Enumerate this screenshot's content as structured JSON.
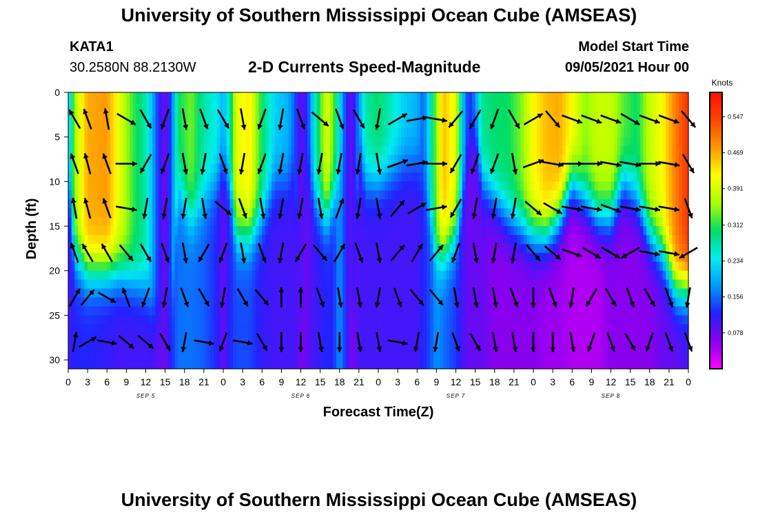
{
  "header": {
    "title": "University of Southern Mississippi Ocean Cube (AMSEAS)",
    "footer_title": "University of Southern Mississippi Ocean Cube (AMSEAS)",
    "station_id": "KATA1",
    "station_coords": "30.2580N  88.2130W",
    "subtitle": "2-D Currents Speed-Magnitude",
    "model_start_label": "Model Start Time",
    "model_start_value": "09/05/2021 Hour 00"
  },
  "chart_data": {
    "type": "heatmap",
    "title": "2-D Currents Speed-Magnitude",
    "xlabel": "Forecast Time(Z)",
    "ylabel": "Depth (ft)",
    "x_tick_labels": [
      "0",
      "3",
      "6",
      "9",
      "12",
      "15",
      "18",
      "21",
      "0",
      "3",
      "6",
      "9",
      "12",
      "15",
      "18",
      "21",
      "0",
      "3",
      "6",
      "9",
      "12",
      "15",
      "18",
      "21",
      "0",
      "3",
      "6",
      "9",
      "12",
      "15",
      "18",
      "21",
      "0"
    ],
    "x_range_hours": [
      0,
      96
    ],
    "day_labels": [
      {
        "label": "SEP 5",
        "hour": 12
      },
      {
        "label": "SEP 6",
        "hour": 36
      },
      {
        "label": "SEP 7",
        "hour": 60
      },
      {
        "label": "SEP 8",
        "hour": 84
      }
    ],
    "y_ticks": [
      0,
      5,
      10,
      15,
      20,
      25,
      30
    ],
    "ylim_ft": [
      0,
      31
    ],
    "y_inverted": true,
    "colorbar": {
      "unit": "Knots",
      "tick_labels": [
        "0.547",
        "0.469",
        "0.391",
        "0.312",
        "0.234",
        "0.156",
        "0.078"
      ],
      "range": [
        0,
        0.6
      ],
      "colors": [
        "#ff00ff",
        "#8800ee",
        "#2222ff",
        "#0099ff",
        "#00eeee",
        "#00dd66",
        "#aaff00",
        "#ffff00",
        "#ff9900",
        "#ff4400",
        "#ff1100"
      ]
    },
    "hour_profiles": [
      {
        "h": 0,
        "s": 0.19,
        "d": 10,
        "h2": 0.1
      },
      {
        "h": 1,
        "s": 0.36,
        "d": 18,
        "h2": 0.12
      },
      {
        "h": 3,
        "s": 0.47,
        "d": 20,
        "h2": 0.12
      },
      {
        "h": 6,
        "s": 0.48,
        "d": 20,
        "h2": 0.11
      },
      {
        "h": 8,
        "s": 0.4,
        "d": 20,
        "h2": 0.1
      },
      {
        "h": 10,
        "s": 0.32,
        "d": 21,
        "h2": 0.1
      },
      {
        "h": 12,
        "s": 0.27,
        "d": 22,
        "h2": 0.1
      },
      {
        "h": 13,
        "s": 0.2,
        "d": 24,
        "h2": 0.1
      },
      {
        "h": 14,
        "s": 0.12,
        "d": 25,
        "h2": 0.08
      },
      {
        "h": 15,
        "s": 0.07,
        "d": 31,
        "h2": 0.07
      },
      {
        "h": 16,
        "s": 0.15,
        "d": 26,
        "h2": 0.12
      },
      {
        "h": 17,
        "s": 0.3,
        "d": 10,
        "h2": 0.16
      },
      {
        "h": 19,
        "s": 0.34,
        "d": 14,
        "h2": 0.16
      },
      {
        "h": 21,
        "s": 0.27,
        "d": 12,
        "h2": 0.15
      },
      {
        "h": 23,
        "s": 0.24,
        "d": 10,
        "h2": 0.12
      },
      {
        "h": 24,
        "s": 0.2,
        "d": 8,
        "h2": 0.08
      },
      {
        "h": 25,
        "s": 0.27,
        "d": 10,
        "h2": 0.12
      },
      {
        "h": 26,
        "s": 0.4,
        "d": 16,
        "h2": 0.14
      },
      {
        "h": 28,
        "s": 0.43,
        "d": 16,
        "h2": 0.14
      },
      {
        "h": 30,
        "s": 0.3,
        "d": 14,
        "h2": 0.11
      },
      {
        "h": 32,
        "s": 0.22,
        "d": 10,
        "h2": 0.1
      },
      {
        "h": 34,
        "s": 0.2,
        "d": 10,
        "h2": 0.1
      },
      {
        "h": 35,
        "s": 0.15,
        "d": 9,
        "h2": 0.1
      },
      {
        "h": 36,
        "s": 0.08,
        "d": 31,
        "h2": 0.07
      },
      {
        "h": 37,
        "s": 0.12,
        "d": 8,
        "h2": 0.08
      },
      {
        "h": 38,
        "s": 0.24,
        "d": 12,
        "h2": 0.1
      },
      {
        "h": 40,
        "s": 0.4,
        "d": 14,
        "h2": 0.12
      },
      {
        "h": 41,
        "s": 0.34,
        "d": 12,
        "h2": 0.12
      },
      {
        "h": 42,
        "s": 0.24,
        "d": 10,
        "h2": 0.18
      },
      {
        "h": 43,
        "s": 0.12,
        "d": 6,
        "h2": 0.12
      },
      {
        "h": 44,
        "s": 0.08,
        "d": 31,
        "h2": 0.06
      },
      {
        "h": 45,
        "s": 0.18,
        "d": 6,
        "h2": 0.1
      },
      {
        "h": 46,
        "s": 0.27,
        "d": 10,
        "h2": 0.1
      },
      {
        "h": 48,
        "s": 0.3,
        "d": 10,
        "h2": 0.1
      },
      {
        "h": 50,
        "s": 0.26,
        "d": 9,
        "h2": 0.1
      },
      {
        "h": 52,
        "s": 0.22,
        "d": 8,
        "h2": 0.1
      },
      {
        "h": 54,
        "s": 0.2,
        "d": 8,
        "h2": 0.1
      },
      {
        "h": 55,
        "s": 0.15,
        "d": 10,
        "h2": 0.12
      },
      {
        "h": 56,
        "s": 0.25,
        "d": 14,
        "h2": 0.14
      },
      {
        "h": 57,
        "s": 0.35,
        "d": 18,
        "h2": 0.18
      },
      {
        "h": 58,
        "s": 0.46,
        "d": 18,
        "h2": 0.16
      },
      {
        "h": 60,
        "s": 0.4,
        "d": 16,
        "h2": 0.13
      },
      {
        "h": 61,
        "s": 0.22,
        "d": 12,
        "h2": 0.1
      },
      {
        "h": 62,
        "s": 0.12,
        "d": 6,
        "h2": 0.08
      },
      {
        "h": 63,
        "s": 0.18,
        "d": 4,
        "h2": 0.08
      },
      {
        "h": 64,
        "s": 0.28,
        "d": 10,
        "h2": 0.08
      },
      {
        "h": 66,
        "s": 0.3,
        "d": 12,
        "h2": 0.06
      },
      {
        "h": 68,
        "s": 0.3,
        "d": 14,
        "h2": 0.06
      },
      {
        "h": 70,
        "s": 0.34,
        "d": 15,
        "h2": 0.06
      },
      {
        "h": 72,
        "s": 0.42,
        "d": 16,
        "h2": 0.06
      },
      {
        "h": 74,
        "s": 0.46,
        "d": 16,
        "h2": 0.05
      },
      {
        "h": 76,
        "s": 0.47,
        "d": 14,
        "h2": 0.05
      },
      {
        "h": 78,
        "s": 0.42,
        "d": 10,
        "h2": 0.04
      },
      {
        "h": 80,
        "s": 0.35,
        "d": 12,
        "h2": 0.04
      },
      {
        "h": 82,
        "s": 0.38,
        "d": 14,
        "h2": 0.04
      },
      {
        "h": 84,
        "s": 0.38,
        "d": 14,
        "h2": 0.06
      },
      {
        "h": 86,
        "s": 0.33,
        "d": 10,
        "h2": 0.06
      },
      {
        "h": 88,
        "s": 0.3,
        "d": 12,
        "h2": 0.06
      },
      {
        "h": 90,
        "s": 0.38,
        "d": 16,
        "h2": 0.06
      },
      {
        "h": 92,
        "s": 0.42,
        "d": 18,
        "h2": 0.08
      },
      {
        "h": 94,
        "s": 0.5,
        "d": 22,
        "h2": 0.08
      },
      {
        "h": 96,
        "s": 0.56,
        "d": 22,
        "h2": 0.1
      }
    ],
    "vector_hours": [
      1,
      3,
      6,
      9,
      12,
      15,
      18,
      21,
      24,
      27,
      30,
      33,
      36,
      39,
      42,
      45,
      48,
      51,
      54,
      57,
      60,
      63,
      66,
      69,
      72,
      75,
      78,
      81,
      84,
      87,
      90,
      93,
      96
    ],
    "vector_depths_ft": [
      3,
      8,
      13,
      18,
      23,
      28
    ],
    "vector_angles_deg_from_north": [
      [
        -30,
        -20,
        -10,
        120,
        150,
        -160,
        170,
        160,
        150,
        170,
        -160,
        -170,
        160,
        130,
        160,
        150,
        -170,
        60,
        80,
        100,
        -140,
        -150,
        -160,
        150,
        60,
        140,
        110,
        110,
        110,
        120,
        110,
        110,
        140
      ],
      [
        -20,
        -15,
        -20,
        90,
        -150,
        -160,
        170,
        -170,
        160,
        -170,
        -160,
        -170,
        -170,
        -170,
        -170,
        -170,
        170,
        70,
        80,
        90,
        -150,
        -160,
        -160,
        170,
        70,
        100,
        90,
        90,
        100,
        100,
        90,
        100,
        150
      ],
      [
        -10,
        -15,
        -20,
        100,
        -170,
        -170,
        -170,
        170,
        130,
        160,
        170,
        -170,
        -170,
        170,
        20,
        -170,
        170,
        40,
        60,
        80,
        -150,
        -170,
        -170,
        -170,
        130,
        120,
        100,
        100,
        110,
        100,
        100,
        100,
        160
      ],
      [
        -20,
        -30,
        -30,
        140,
        150,
        160,
        170,
        -150,
        -160,
        170,
        160,
        -170,
        -150,
        140,
        30,
        160,
        170,
        40,
        30,
        40,
        -160,
        170,
        -170,
        -170,
        140,
        130,
        110,
        120,
        120,
        -120,
        100,
        100,
        -120
      ],
      [
        30,
        40,
        120,
        -20,
        -160,
        -170,
        160,
        150,
        -170,
        150,
        140,
        0,
        0,
        160,
        170,
        170,
        -170,
        160,
        140,
        140,
        170,
        170,
        170,
        160,
        180,
        160,
        -170,
        -150,
        150,
        160,
        150,
        160,
        -170
      ],
      [
        10,
        60,
        100,
        130,
        130,
        150,
        -170,
        100,
        -160,
        100,
        150,
        180,
        180,
        170,
        180,
        170,
        170,
        100,
        -170,
        -170,
        160,
        150,
        170,
        170,
        180,
        180,
        170,
        -160,
        160,
        150,
        -160,
        160,
        160
      ]
    ],
    "vector_knots": [
      0.45,
      0.45,
      0.4,
      0.35,
      0.3,
      0.25
    ]
  }
}
